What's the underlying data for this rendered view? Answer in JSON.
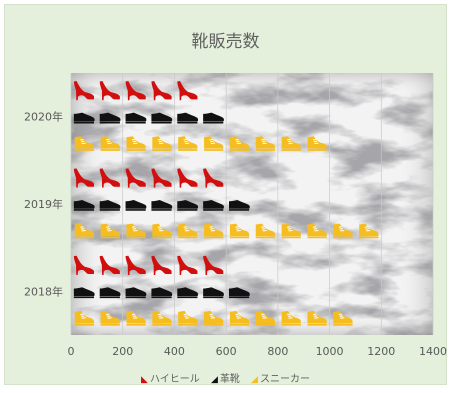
{
  "chart_data": {
    "type": "bar",
    "orientation": "horizontal",
    "pictograph": true,
    "title": "靴販売数",
    "categories": [
      "2018年",
      "2019年",
      "2020年"
    ],
    "series": [
      {
        "name": "ハイヒール",
        "icon": "high-heel-icon",
        "color": "#d20f0f",
        "values": [
          640,
          630,
          520
        ]
      },
      {
        "name": "革靴",
        "icon": "leather-shoe-icon",
        "color": "#111111",
        "values": [
          730,
          790,
          640
        ]
      },
      {
        "name": "スニーカー",
        "icon": "sneaker-icon",
        "color": "#f5bd1f",
        "values": [
          1160,
          1260,
          1060
        ]
      }
    ],
    "xaxis": {
      "min": 0,
      "max": 1400,
      "ticks": [
        "0",
        "200",
        "400",
        "600",
        "800",
        "1000",
        "1200",
        "1400"
      ]
    },
    "unit_per_icon": 100,
    "grid": {
      "vertical": true
    },
    "legend": {
      "position": "bottom"
    },
    "plot_background": "marble"
  }
}
